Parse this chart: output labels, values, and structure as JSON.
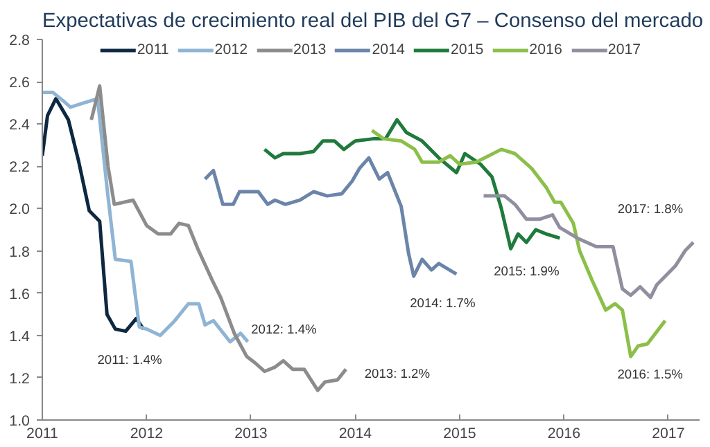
{
  "chart_data": {
    "type": "line",
    "title": "Expectativas de crecimiento real del PIB del G7 – Consenso del mercado",
    "xlim": [
      2011,
      2017.3
    ],
    "ylim": [
      1.0,
      2.8
    ],
    "xticks": [
      2011,
      2012,
      2013,
      2014,
      2015,
      2016,
      2017
    ],
    "yticks": [
      {
        "value": 1.0,
        "label": "1.0"
      },
      1.2,
      1.4,
      1.6,
      1.8,
      {
        "value": 2.0,
        "label": "2.0"
      },
      2.2,
      2.4,
      2.6,
      2.8
    ],
    "grid": false,
    "legend": "top",
    "line_style": "solid",
    "marker": "none",
    "series": [
      {
        "name": "2011",
        "color": "#0d2840",
        "x": [
          2011.0,
          2011.05,
          2011.13,
          2011.25,
          2011.35,
          2011.45,
          2011.55,
          2011.62,
          2011.7,
          2011.8,
          2011.9,
          2011.97
        ],
        "values": [
          2.25,
          2.44,
          2.52,
          2.42,
          2.22,
          1.99,
          1.94,
          1.5,
          1.43,
          1.42,
          1.48,
          1.43
        ]
      },
      {
        "name": "2012",
        "color": "#8fb4d4",
        "x": [
          2011.0,
          2011.1,
          2011.2,
          2011.27,
          2011.4,
          2011.53,
          2011.62,
          2011.7,
          2011.85,
          2011.93,
          2012.0,
          2012.13,
          2012.27,
          2012.4,
          2012.5,
          2012.56,
          2012.64,
          2012.8,
          2012.9,
          2012.97
        ],
        "values": [
          2.55,
          2.55,
          2.51,
          2.48,
          2.5,
          2.52,
          2.1,
          1.76,
          1.75,
          1.44,
          1.43,
          1.4,
          1.47,
          1.55,
          1.55,
          1.45,
          1.47,
          1.37,
          1.41,
          1.37
        ]
      },
      {
        "name": "2013",
        "color": "#8c8c8c",
        "x": [
          2011.47,
          2011.55,
          2011.63,
          2011.69,
          2011.87,
          2012.0,
          2012.11,
          2012.23,
          2012.31,
          2012.4,
          2012.49,
          2012.63,
          2012.71,
          2012.84,
          2012.96,
          2013.04,
          2013.13,
          2013.23,
          2013.31,
          2013.4,
          2013.51,
          2013.64,
          2013.71,
          2013.83,
          2013.91
        ],
        "values": [
          2.42,
          2.58,
          2.2,
          2.02,
          2.04,
          1.92,
          1.88,
          1.88,
          1.93,
          1.92,
          1.81,
          1.66,
          1.58,
          1.41,
          1.3,
          1.27,
          1.23,
          1.25,
          1.28,
          1.24,
          1.24,
          1.14,
          1.18,
          1.19,
          1.24
        ]
      },
      {
        "name": "2014",
        "color": "#6b84aa",
        "x": [
          2012.56,
          2012.64,
          2012.73,
          2012.83,
          2012.89,
          2013.07,
          2013.16,
          2013.23,
          2013.33,
          2013.47,
          2013.6,
          2013.73,
          2013.87,
          2013.97,
          2014.04,
          2014.13,
          2014.23,
          2014.31,
          2014.44,
          2014.51,
          2014.56,
          2014.64,
          2014.73,
          2014.8,
          2014.97
        ],
        "values": [
          2.14,
          2.18,
          2.02,
          2.02,
          2.08,
          2.08,
          2.02,
          2.04,
          2.02,
          2.04,
          2.08,
          2.06,
          2.07,
          2.13,
          2.19,
          2.24,
          2.14,
          2.17,
          2.01,
          1.79,
          1.68,
          1.76,
          1.71,
          1.74,
          1.69
        ]
      },
      {
        "name": "2015",
        "color": "#1f7a3c",
        "x": [
          2013.13,
          2013.23,
          2013.31,
          2013.47,
          2013.6,
          2013.69,
          2013.8,
          2013.89,
          2014.0,
          2014.17,
          2014.29,
          2014.4,
          2014.49,
          2014.64,
          2014.8,
          2014.97,
          2015.05,
          2015.2,
          2015.31,
          2015.4,
          2015.49,
          2015.56,
          2015.64,
          2015.73,
          2015.83,
          2015.96
        ],
        "values": [
          2.28,
          2.24,
          2.26,
          2.26,
          2.27,
          2.32,
          2.32,
          2.28,
          2.32,
          2.33,
          2.33,
          2.42,
          2.36,
          2.32,
          2.24,
          2.17,
          2.26,
          2.21,
          2.15,
          2.0,
          1.81,
          1.88,
          1.84,
          1.9,
          1.88,
          1.86
        ]
      },
      {
        "name": "2016",
        "color": "#8cbf4a",
        "x": [
          2014.16,
          2014.27,
          2014.44,
          2014.57,
          2014.64,
          2014.8,
          2014.91,
          2015.0,
          2015.16,
          2015.4,
          2015.53,
          2015.69,
          2015.83,
          2015.91,
          2015.97,
          2016.09,
          2016.15,
          2016.27,
          2016.4,
          2016.49,
          2016.56,
          2016.64,
          2016.71,
          2016.8,
          2016.97
        ],
        "values": [
          2.37,
          2.33,
          2.32,
          2.28,
          2.22,
          2.22,
          2.25,
          2.21,
          2.22,
          2.28,
          2.26,
          2.19,
          2.1,
          2.03,
          2.03,
          1.93,
          1.8,
          1.66,
          1.52,
          1.55,
          1.52,
          1.3,
          1.35,
          1.36,
          1.47
        ]
      },
      {
        "name": "2017",
        "color": "#8f8f9f",
        "x": [
          2015.23,
          2015.43,
          2015.53,
          2015.64,
          2015.77,
          2015.89,
          2015.96,
          2016.13,
          2016.31,
          2016.47,
          2016.56,
          2016.64,
          2016.73,
          2016.83,
          2016.89,
          2017.07,
          2017.16,
          2017.24
        ],
        "values": [
          2.06,
          2.06,
          2.02,
          1.95,
          1.95,
          1.97,
          1.91,
          1.86,
          1.82,
          1.82,
          1.62,
          1.59,
          1.63,
          1.58,
          1.64,
          1.73,
          1.8,
          1.84
        ]
      }
    ],
    "annotations": [
      {
        "text": "2011: 1.4%",
        "x": 2011.97,
        "y": 1.43
      },
      {
        "text": "2012: 1.4%",
        "x": 2012.97,
        "y": 1.37
      },
      {
        "text": "2013: 1.2%",
        "x": 2013.91,
        "y": 1.24
      },
      {
        "text": "2014: 1.7%",
        "x": 2014.97,
        "y": 1.69
      },
      {
        "text": "2015: 1.9%",
        "x": 2015.96,
        "y": 1.86
      },
      {
        "text": "2016: 1.5%",
        "x": 2016.64,
        "y": 1.3
      },
      {
        "text": "2017: 1.8%",
        "x": 2017.24,
        "y": 1.84
      }
    ]
  }
}
